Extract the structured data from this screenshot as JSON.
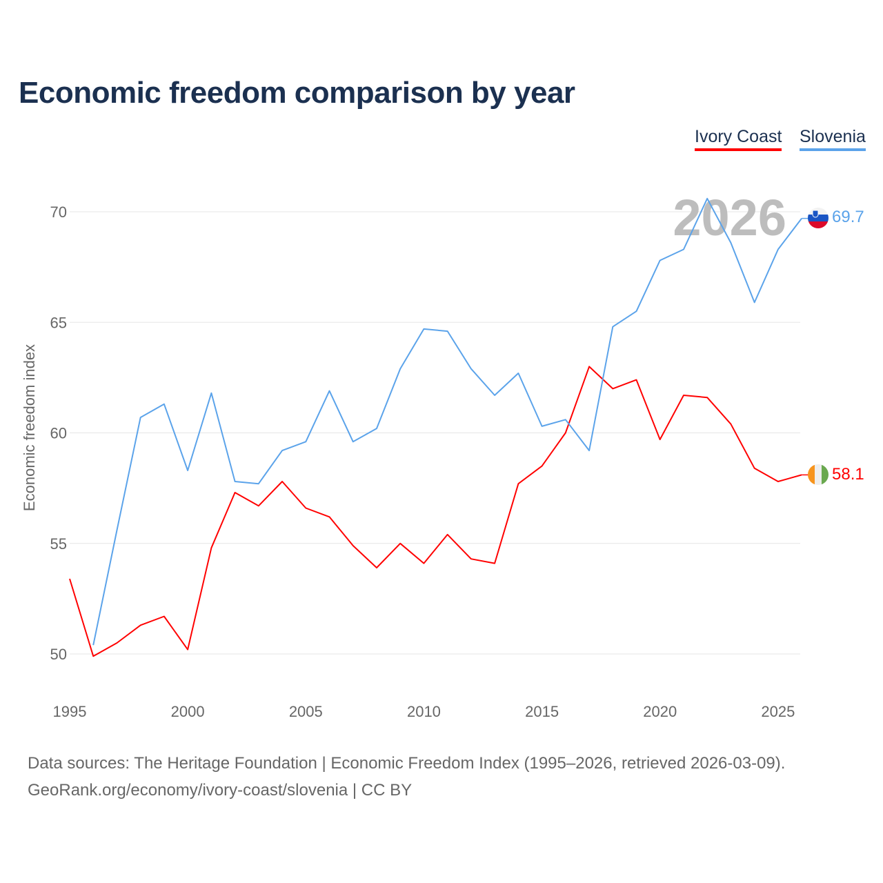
{
  "chart_data": {
    "type": "line",
    "title": "Economic freedom comparison by year",
    "xlabel": "",
    "ylabel": "Economic freedom index",
    "xlim": [
      1995,
      2026
    ],
    "ylim": [
      48,
      72
    ],
    "x_ticks": [
      1995,
      2000,
      2005,
      2010,
      2015,
      2020,
      2025
    ],
    "y_ticks": [
      50,
      55,
      60,
      65,
      70
    ],
    "grid": true,
    "legend_position": "top-right",
    "year_watermark": "2026",
    "series": [
      {
        "name": "Ivory Coast",
        "color": "#ff0000",
        "end_label": "58.1",
        "x": [
          1995,
          1996,
          1997,
          1998,
          1999,
          2000,
          2001,
          2002,
          2003,
          2004,
          2005,
          2006,
          2007,
          2008,
          2009,
          2010,
          2011,
          2012,
          2013,
          2014,
          2015,
          2016,
          2017,
          2018,
          2019,
          2020,
          2021,
          2022,
          2023,
          2024,
          2025,
          2026
        ],
        "values": [
          53.4,
          49.9,
          50.5,
          51.3,
          51.7,
          50.2,
          54.8,
          57.3,
          56.7,
          57.8,
          56.6,
          56.2,
          54.9,
          53.9,
          55.0,
          54.1,
          55.4,
          54.3,
          54.1,
          57.7,
          58.5,
          60.0,
          63.0,
          62.0,
          62.4,
          59.7,
          61.7,
          61.6,
          60.4,
          58.4,
          57.8,
          58.1
        ]
      },
      {
        "name": "Slovenia",
        "color": "#5ba3ea",
        "end_label": "69.7",
        "x": [
          1996,
          1997,
          1998,
          1999,
          2000,
          2001,
          2002,
          2003,
          2004,
          2005,
          2006,
          2007,
          2008,
          2009,
          2010,
          2011,
          2012,
          2013,
          2014,
          2015,
          2016,
          2017,
          2018,
          2019,
          2020,
          2021,
          2022,
          2023,
          2024,
          2025,
          2026
        ],
        "values": [
          50.4,
          55.6,
          60.7,
          61.3,
          58.3,
          61.8,
          57.8,
          57.7,
          59.2,
          59.6,
          61.9,
          59.6,
          60.2,
          62.9,
          64.7,
          64.6,
          62.9,
          61.7,
          62.7,
          60.3,
          60.6,
          59.2,
          64.8,
          65.5,
          67.8,
          68.3,
          70.6,
          68.6,
          65.9,
          68.3,
          69.7
        ]
      }
    ]
  },
  "footer": {
    "line1": "Data sources: The Heritage Foundation | Economic Freedom Index (1995–2026, retrieved 2026-03-09).",
    "line2": "GeoRank.org/economy/ivory-coast/slovenia | CC BY"
  }
}
